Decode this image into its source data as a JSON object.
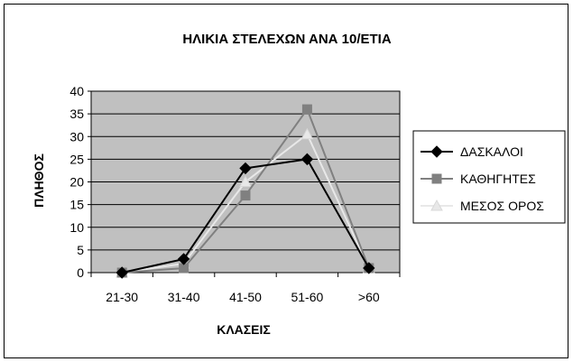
{
  "chart_data": {
    "type": "line",
    "title": "ΗΛΙΚΙΑ ΣΤΕΛΕΧΩΝ ΑΝΑ 10/ΕΤΙΑ",
    "xlabel": "ΚΛΑΣΕΙΣ",
    "ylabel": "ΠΛΗΘΟΣ",
    "categories": [
      "21-30",
      "31-40",
      "41-50",
      "51-60",
      ">60"
    ],
    "ylim": [
      0,
      40
    ],
    "yticks": [
      "0",
      "5",
      "10",
      "15",
      "20",
      "25",
      "30",
      "35",
      "40"
    ],
    "grid": true,
    "legend_position": "right",
    "plot_background": "#c0c0c0",
    "series": [
      {
        "name": "ΔΑΣΚΑΛΟΙ",
        "values": [
          0,
          3,
          23,
          25,
          1
        ],
        "color": "#000000",
        "marker": "diamond"
      },
      {
        "name": "ΚΑΘΗΓΗΤΕΣ",
        "values": [
          0,
          1,
          17,
          36,
          1
        ],
        "color": "#808080",
        "marker": "square"
      },
      {
        "name": "ΜΕΣΟΣ ΟΡΟΣ",
        "values": [
          0,
          2,
          20,
          30.5,
          1
        ],
        "color": "#e8e8e8",
        "marker": "triangle"
      }
    ]
  }
}
